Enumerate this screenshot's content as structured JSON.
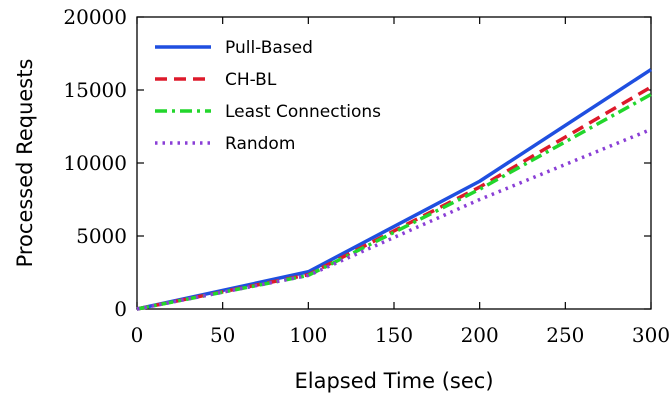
{
  "chart_data": {
    "type": "line",
    "title": "",
    "xlabel": "Elapsed Time (sec)",
    "ylabel": "Processed Requests",
    "xlim": [
      0,
      300
    ],
    "ylim": [
      0,
      20000
    ],
    "xticks": [
      0,
      50,
      100,
      150,
      200,
      250,
      300
    ],
    "yticks": [
      0,
      5000,
      10000,
      15000,
      20000
    ],
    "grid": false,
    "legend_position": "top-left",
    "x": [
      0,
      100,
      200,
      300
    ],
    "series": [
      {
        "name": "Pull-Based",
        "values": [
          0,
          2550,
          8750,
          16400
        ],
        "color": "#1f4fe0",
        "dash": "solid"
      },
      {
        "name": "CH-BL",
        "values": [
          0,
          2350,
          8350,
          15200
        ],
        "color": "#dd1a2b",
        "dash": "dashed"
      },
      {
        "name": "Least Connections",
        "values": [
          0,
          2300,
          8200,
          14700
        ],
        "color": "#22d62c",
        "dash": "dashdot"
      },
      {
        "name": "Random",
        "values": [
          0,
          2300,
          7500,
          12300
        ],
        "color": "#8a3fd6",
        "dash": "dotted"
      }
    ]
  }
}
